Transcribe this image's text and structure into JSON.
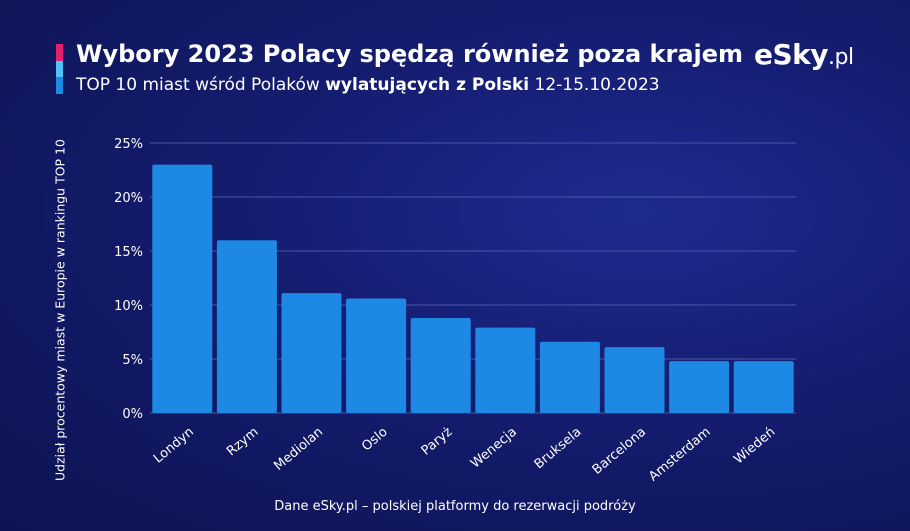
{
  "header": {
    "title": "Wybory 2023 Polacy spędzą również poza krajem",
    "subtitle_prefix": "TOP 10 miast wśród Polaków ",
    "subtitle_bold": "wylatujących z Polski",
    "subtitle_suffix": " 12-15.10.2023"
  },
  "logo": {
    "brand": "eSky",
    "domain": ".pl"
  },
  "footer": {
    "source": "Dane eSky.pl – polskiej platformy do rezerwacji podróży"
  },
  "colors": {
    "bar": "#1e88e5",
    "background": "#141c6e",
    "grid": "#4a56a8"
  },
  "chart_data": {
    "type": "bar",
    "title": "",
    "xlabel": "",
    "ylabel": "Udział procentowy miast w Europie w rankingu TOP 10",
    "categories": [
      "Londyn",
      "Rzym",
      "Mediolan",
      "Oslo",
      "Paryż",
      "Wenecja",
      "Bruksela",
      "Barcelona",
      "Amsterdam",
      "Wiedeń"
    ],
    "values": [
      23.0,
      16.0,
      11.1,
      10.6,
      8.8,
      7.9,
      6.6,
      6.1,
      4.8,
      4.8
    ],
    "ylim": [
      0,
      25
    ],
    "yticks": [
      0,
      5,
      10,
      15,
      20,
      25
    ],
    "ytick_labels": [
      "0%",
      "5%",
      "10%",
      "15%",
      "20%",
      "25%"
    ],
    "grid": true,
    "legend": "none"
  }
}
